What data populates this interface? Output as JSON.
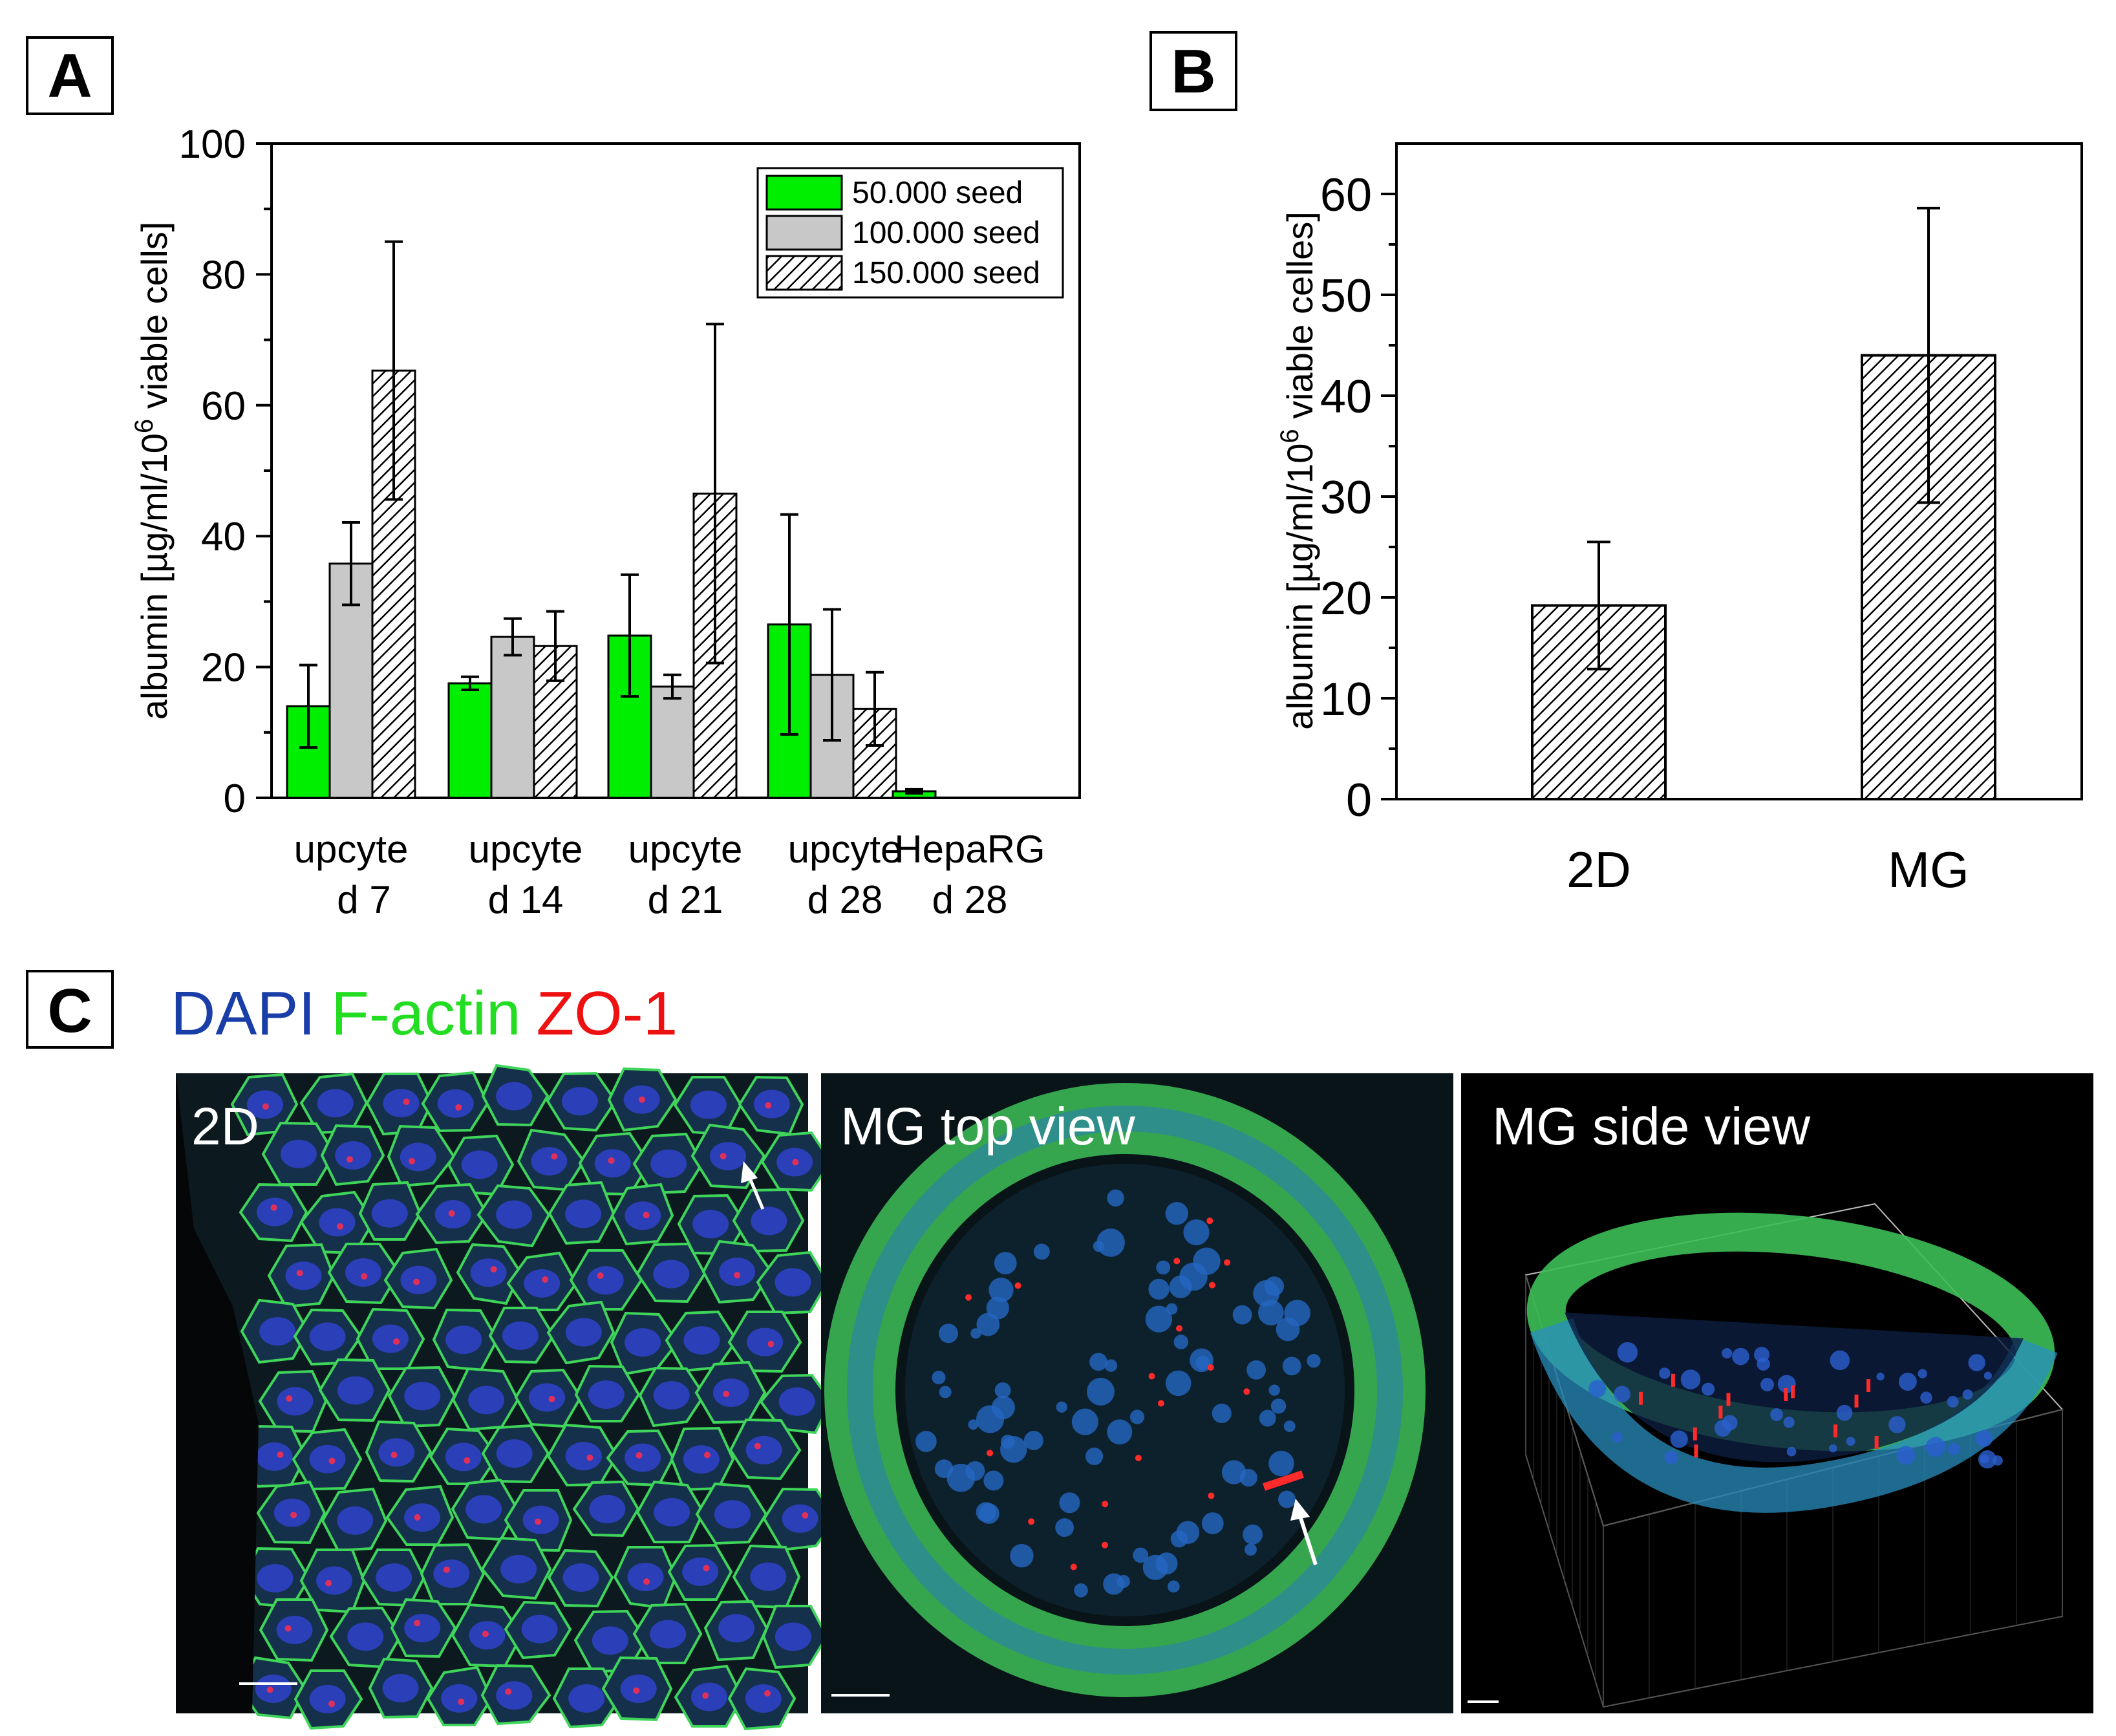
{
  "panels": {
    "A": {
      "letter": "A"
    },
    "B": {
      "letter": "B"
    },
    "C": {
      "letter": "C"
    }
  },
  "chart_data": [
    {
      "type": "bar",
      "id": "A",
      "ylabel_main": "albumin [µg/ml/10",
      "ylabel_sup": "6",
      "ylabel_tail": " viable cells]",
      "ylim": [
        0,
        100
      ],
      "yticks": [
        0,
        20,
        40,
        60,
        80,
        100
      ],
      "categories": [
        {
          "line1": "upcyte",
          "line2": "d 7"
        },
        {
          "line1": "upcyte",
          "line2": "d 14"
        },
        {
          "line1": "upcyte",
          "line2": "d 21"
        },
        {
          "line1": "upcyte",
          "line2": "d 28"
        },
        {
          "line1": "HepaRG",
          "line2": "d 28"
        }
      ],
      "series": [
        {
          "name": "50.000 seed",
          "fill": "#00ee00",
          "values": [
            14,
            17.5,
            24.8,
            26.5,
            1.0
          ],
          "errors": [
            6.3,
            1.0,
            9.3,
            16.8,
            0.3
          ]
        },
        {
          "name": "100.000 seed",
          "fill": "#c8c8c8",
          "values": [
            35.8,
            24.6,
            17,
            18.8,
            null
          ],
          "errors": [
            6.3,
            2.8,
            1.8,
            10,
            null
          ]
        },
        {
          "name": "150.000 seed",
          "fill": "hatch",
          "values": [
            65.3,
            23.2,
            46.5,
            13.6,
            null
          ],
          "errors": [
            19.7,
            5.3,
            25.9,
            5.6,
            null
          ]
        }
      ],
      "legend_position": "top-right"
    },
    {
      "type": "bar",
      "id": "B",
      "ylabel_main": "albumin [µg/ml/10",
      "ylabel_sup": "6",
      "ylabel_tail": " viable celles]",
      "ylim": [
        0,
        65
      ],
      "yticks": [
        0,
        10,
        20,
        30,
        40,
        50,
        60
      ],
      "categories": [
        "2D",
        "MG"
      ],
      "values": [
        19.2,
        44
      ],
      "errors": [
        6.3,
        14.6
      ],
      "fill": "hatch"
    }
  ],
  "panel_c": {
    "stain_labels": [
      {
        "text": "DAPI",
        "color": "#1a3ea8"
      },
      {
        "text": "F-actin",
        "color": "#22dd22"
      },
      {
        "text": "ZO-1",
        "color": "#ee1111"
      }
    ],
    "images": [
      {
        "title": "2D"
      },
      {
        "title": "MG top view"
      },
      {
        "title": "MG side view"
      }
    ]
  }
}
